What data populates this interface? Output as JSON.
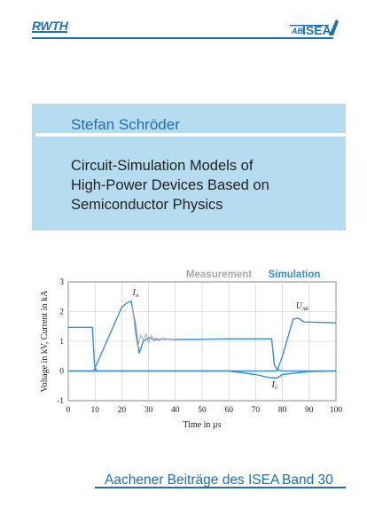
{
  "header": {
    "left_logo_text": "RWTH",
    "right_logo_text": "ISEA",
    "right_logo_prefix": "AB"
  },
  "cover": {
    "author": "Stefan Schröder",
    "title_lines": [
      "Circuit-Simulation Models of",
      "High-Power Devices Based on",
      "Semiconductor Physics"
    ],
    "series": "Aachener Beiträge des ISEA",
    "volume": "Band 30"
  },
  "colors": {
    "brand_blue": "#1f6fb3",
    "panel_blue": "#b6dcef",
    "simulation": "#3a8fd0",
    "measurement": "#a9a9a9"
  },
  "chart_data": {
    "type": "line",
    "legend": [
      "Measurement",
      "Simulation"
    ],
    "xlabel": "Time in µs",
    "ylabel": "Voltage in kV, Current in kA",
    "xlim": [
      0,
      100
    ],
    "ylim": [
      -1,
      3
    ],
    "xticks": [
      "0",
      "10",
      "20",
      "30",
      "40",
      "50",
      "60",
      "70",
      "80",
      "90",
      "100"
    ],
    "yticks": [
      "-1",
      "0",
      "1",
      "2",
      "3"
    ],
    "grid": true,
    "annotations": [
      {
        "text": "I",
        "sub": "A",
        "x": 24,
        "y": 2.55
      },
      {
        "text": "U",
        "sub": "AK",
        "x": 85,
        "y": 2.1
      },
      {
        "text": "I",
        "sub": "G",
        "x": 76,
        "y": -0.55
      }
    ],
    "series": [
      {
        "name": "Simulation",
        "curve": "U_AK",
        "x": [
          0,
          9,
          9.8,
          10.5,
          78,
          80,
          84,
          86,
          88,
          100
        ],
        "y": [
          1.47,
          1.47,
          0.2,
          0.0,
          0.0,
          0.5,
          1.75,
          1.78,
          1.65,
          1.62
        ]
      },
      {
        "name": "Simulation",
        "curve": "I_A",
        "x": [
          0,
          9.5,
          20,
          22,
          23.5,
          25,
          26.5,
          28,
          30,
          33,
          36,
          40,
          50,
          60,
          70,
          76,
          77,
          78,
          80,
          100
        ],
        "y": [
          0.0,
          0.0,
          2.15,
          2.3,
          2.35,
          1.6,
          0.6,
          1.0,
          1.12,
          1.05,
          1.08,
          1.06,
          1.07,
          1.08,
          1.08,
          1.08,
          0.2,
          0.05,
          0.0,
          0.0
        ]
      },
      {
        "name": "Simulation",
        "curve": "I_G",
        "x": [
          0,
          60,
          70,
          75,
          78,
          80,
          90,
          100
        ],
        "y": [
          0.0,
          0.0,
          -0.12,
          -0.22,
          -0.24,
          -0.12,
          -0.02,
          0.0
        ]
      },
      {
        "name": "Measurement",
        "curve": "I_A",
        "x": [
          24,
          25,
          26,
          27,
          28,
          29,
          30,
          31,
          32,
          33,
          34,
          35,
          36,
          38,
          40
        ],
        "y": [
          2.2,
          1.3,
          0.8,
          1.2,
          1.05,
          1.25,
          0.95,
          1.2,
          1.0,
          1.12,
          1.02,
          1.1,
          1.05,
          1.08,
          1.07
        ]
      }
    ]
  }
}
